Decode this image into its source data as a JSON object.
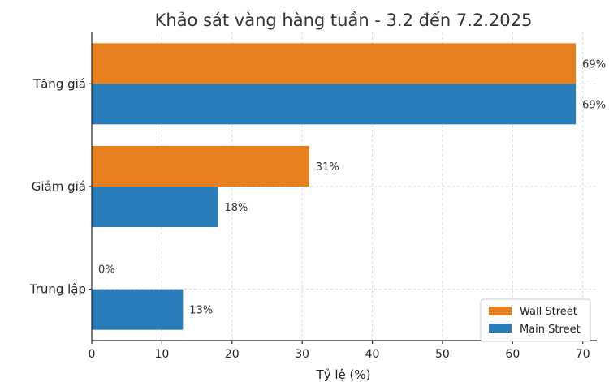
{
  "chart_data": {
    "type": "bar",
    "orientation": "horizontal",
    "title": "Khảo sát vàng hàng tuần - 3.2 đến 7.2.2025",
    "xlabel": "Tỷ lệ (%)",
    "ylabel": "",
    "categories": [
      "Tăng giá",
      "Giảm giá",
      "Trung lập"
    ],
    "series": [
      {
        "name": "Wall Street",
        "values": [
          69,
          31,
          0
        ],
        "color": "#e6801f",
        "labels": [
          "69%",
          "31%",
          "0%"
        ]
      },
      {
        "name": "Main Street",
        "values": [
          69,
          18,
          13
        ],
        "color": "#2a7cb8",
        "labels": [
          "69%",
          "18%",
          "13%"
        ]
      }
    ],
    "xlim": [
      0,
      72
    ],
    "xticks": [
      0,
      10,
      20,
      30,
      40,
      50,
      60,
      70
    ],
    "grid": true,
    "legend_position": "bottom-right"
  }
}
